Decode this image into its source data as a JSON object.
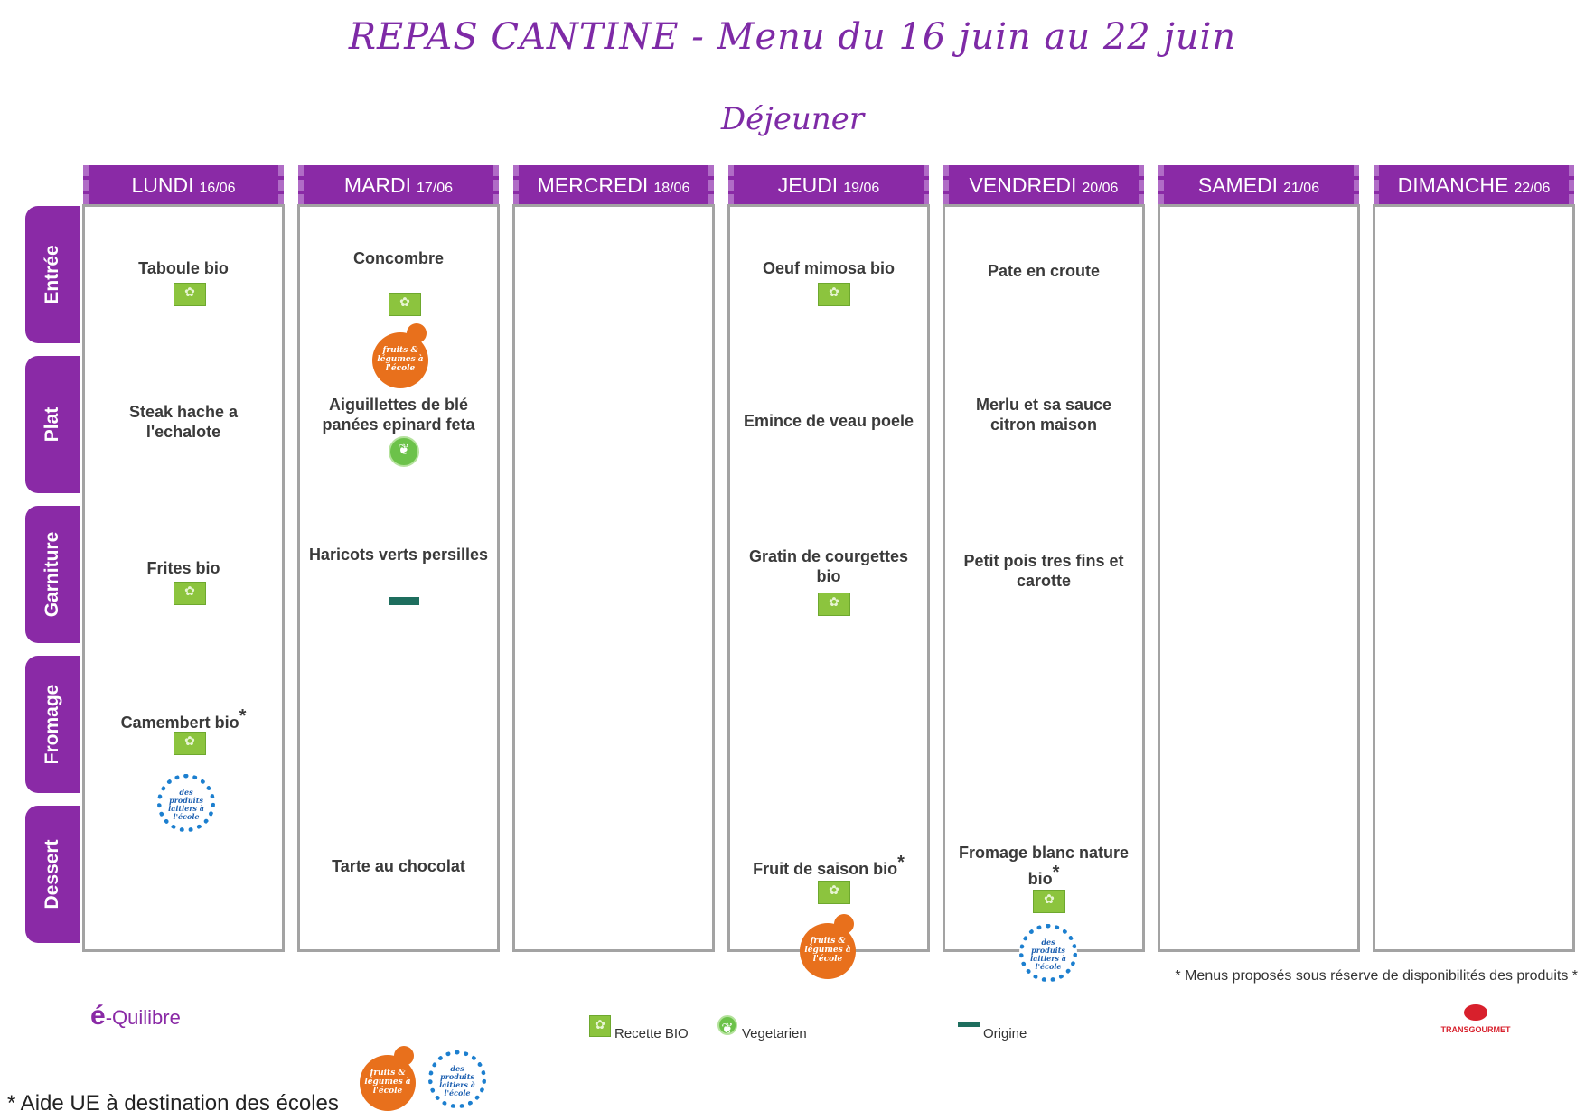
{
  "title": "REPAS CANTINE - Menu du 16 juin au 22 juin",
  "subtitle": "Déjeuner",
  "days": [
    {
      "name": "LUNDI",
      "date": "16/06"
    },
    {
      "name": "MARDI",
      "date": "17/06"
    },
    {
      "name": "MERCREDI",
      "date": "18/06"
    },
    {
      "name": "JEUDI",
      "date": "19/06"
    },
    {
      "name": "VENDREDI",
      "date": "20/06"
    },
    {
      "name": "SAMEDI",
      "date": "21/06"
    },
    {
      "name": "DIMANCHE",
      "date": "22/06"
    }
  ],
  "rows": [
    "Entrée",
    "Plat",
    "Garniture",
    "Fromage",
    "Dessert"
  ],
  "menu": {
    "lundi": {
      "entree": "Taboule bio",
      "plat": "Steak hache a l'echalote",
      "garniture": "Frites bio",
      "fromage": "Camembert bio",
      "fromage_mark": "*"
    },
    "mardi": {
      "entree": "Concombre",
      "plat": "Aiguillettes de blé panées epinard feta",
      "garniture": "Haricots verts persilles",
      "dessert": "Tarte au chocolat"
    },
    "jeudi": {
      "entree": "Oeuf mimosa bio",
      "plat": "Emince de veau poele",
      "garniture": "Gratin de courgettes bio",
      "dessert": "Fruit de saison bio",
      "dessert_mark": "*"
    },
    "vendredi": {
      "entree": "Pate en croute",
      "plat": "Merlu et sa sauce citron maison",
      "garniture": "Petit pois tres fins et carotte",
      "dessert": "Fromage blanc nature bio",
      "dessert_mark": "*"
    }
  },
  "logo_text": {
    "fruits": "fruits & légumes à l'école",
    "produits": "des produits laitiers à l'école",
    "equilibre_e": "é",
    "equilibre_rest": "-Quilibre",
    "transgourmet": "TRANSGOURMET"
  },
  "legend": {
    "bio": "Recette BIO",
    "vegetarien": "Vegetarien",
    "origine": "Origine"
  },
  "notes": {
    "availability": "* Menus proposés sous réserve de disponibilités des produits *",
    "aide": "* Aide UE à destination des écoles"
  },
  "colors": {
    "purple": "#8a2aa6",
    "title_purple": "#7e2aa6",
    "bio_green": "#8cc43e",
    "fruits_orange": "#e8701c",
    "lait_blue": "#1c7fcf"
  }
}
